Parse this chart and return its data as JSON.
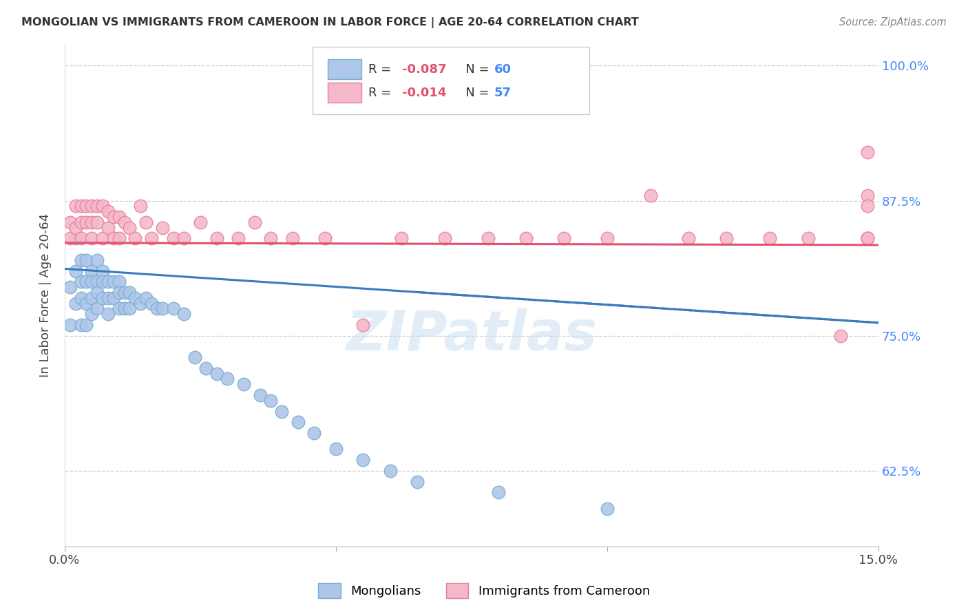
{
  "title": "MONGOLIAN VS IMMIGRANTS FROM CAMEROON IN LABOR FORCE | AGE 20-64 CORRELATION CHART",
  "source_text": "Source: ZipAtlas.com",
  "ylabel": "In Labor Force | Age 20-64",
  "xlim": [
    0.0,
    0.15
  ],
  "ylim": [
    0.555,
    1.02
  ],
  "xtick_vals": [
    0.0,
    0.05,
    0.1,
    0.15
  ],
  "xtick_labels": [
    "0.0%",
    "",
    "",
    "15.0%"
  ],
  "ytick_vals": [
    0.625,
    0.75,
    0.875,
    1.0
  ],
  "ytick_labels_right": [
    "62.5%",
    "75.0%",
    "87.5%",
    "100.0%"
  ],
  "grid_color": "#cccccc",
  "background_color": "#ffffff",
  "mongolian_color": "#aec6e8",
  "cameroon_color": "#f4b8c8",
  "mongolian_edge_color": "#7aaed4",
  "cameroon_edge_color": "#e87fa0",
  "trend_line_mongolian_color": "#3a7abf",
  "trend_line_cameroon_color": "#e05070",
  "legend_R_mongolian": "-0.087",
  "legend_N_mongolian": "60",
  "legend_R_cameroon": "-0.014",
  "legend_N_cameroon": "57",
  "watermark_text": "ZIPatlas",
  "mongolian_x": [
    0.001,
    0.001,
    0.002,
    0.002,
    0.002,
    0.003,
    0.003,
    0.003,
    0.003,
    0.004,
    0.004,
    0.004,
    0.004,
    0.005,
    0.005,
    0.005,
    0.005,
    0.006,
    0.006,
    0.006,
    0.006,
    0.007,
    0.007,
    0.007,
    0.008,
    0.008,
    0.008,
    0.009,
    0.009,
    0.01,
    0.01,
    0.01,
    0.011,
    0.011,
    0.012,
    0.012,
    0.013,
    0.014,
    0.015,
    0.016,
    0.017,
    0.018,
    0.02,
    0.022,
    0.024,
    0.026,
    0.028,
    0.03,
    0.033,
    0.036,
    0.038,
    0.04,
    0.043,
    0.046,
    0.05,
    0.055,
    0.06,
    0.065,
    0.08,
    0.1
  ],
  "mongolian_y": [
    0.795,
    0.76,
    0.84,
    0.81,
    0.78,
    0.82,
    0.8,
    0.785,
    0.76,
    0.82,
    0.8,
    0.78,
    0.76,
    0.81,
    0.8,
    0.785,
    0.77,
    0.82,
    0.8,
    0.79,
    0.775,
    0.81,
    0.8,
    0.785,
    0.8,
    0.785,
    0.77,
    0.8,
    0.785,
    0.8,
    0.79,
    0.775,
    0.79,
    0.775,
    0.79,
    0.775,
    0.785,
    0.78,
    0.785,
    0.78,
    0.775,
    0.775,
    0.775,
    0.77,
    0.73,
    0.72,
    0.715,
    0.71,
    0.705,
    0.695,
    0.69,
    0.68,
    0.67,
    0.66,
    0.645,
    0.635,
    0.625,
    0.615,
    0.605,
    0.59
  ],
  "cameroon_x": [
    0.001,
    0.001,
    0.002,
    0.002,
    0.003,
    0.003,
    0.003,
    0.004,
    0.004,
    0.005,
    0.005,
    0.005,
    0.006,
    0.006,
    0.007,
    0.007,
    0.008,
    0.008,
    0.009,
    0.009,
    0.01,
    0.01,
    0.011,
    0.012,
    0.013,
    0.014,
    0.015,
    0.016,
    0.018,
    0.02,
    0.022,
    0.025,
    0.028,
    0.032,
    0.035,
    0.038,
    0.042,
    0.048,
    0.055,
    0.062,
    0.07,
    0.078,
    0.085,
    0.092,
    0.1,
    0.108,
    0.115,
    0.122,
    0.13,
    0.137,
    0.143,
    0.148,
    0.148,
    0.148,
    0.148,
    0.148,
    0.148
  ],
  "cameroon_y": [
    0.855,
    0.84,
    0.87,
    0.85,
    0.87,
    0.855,
    0.84,
    0.87,
    0.855,
    0.87,
    0.855,
    0.84,
    0.87,
    0.855,
    0.87,
    0.84,
    0.865,
    0.85,
    0.86,
    0.84,
    0.86,
    0.84,
    0.855,
    0.85,
    0.84,
    0.87,
    0.855,
    0.84,
    0.85,
    0.84,
    0.84,
    0.855,
    0.84,
    0.84,
    0.855,
    0.84,
    0.84,
    0.84,
    0.76,
    0.84,
    0.84,
    0.84,
    0.84,
    0.84,
    0.84,
    0.88,
    0.84,
    0.84,
    0.84,
    0.84,
    0.75,
    0.92,
    0.88,
    0.87,
    0.84,
    0.84,
    0.84
  ]
}
